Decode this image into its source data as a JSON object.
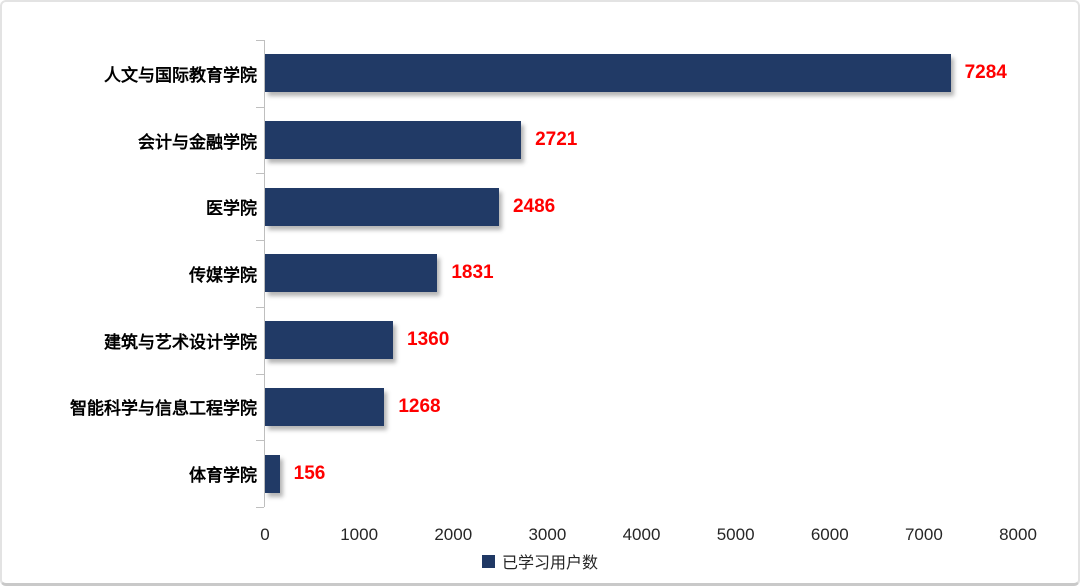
{
  "chart_data": {
    "type": "bar",
    "orientation": "horizontal",
    "categories": [
      "人文与国际教育学院",
      "会计与金融学院",
      "医学院",
      "传媒学院",
      "建筑与艺术设计学院",
      "智能科学与信息工程学院",
      "体育学院"
    ],
    "values": [
      7284,
      2721,
      2486,
      1831,
      1360,
      1268,
      156
    ],
    "value_labels": [
      "7284",
      "2721",
      "2486",
      "1831",
      "1360",
      "1268",
      "156"
    ],
    "title": "",
    "xlabel": "",
    "ylabel": "",
    "xlim": [
      0,
      8000
    ],
    "xticks": [
      0,
      1000,
      2000,
      3000,
      4000,
      5000,
      6000,
      7000,
      8000
    ],
    "grid": false,
    "legend_position": "bottom-center",
    "legend": "已学习用户数",
    "bar_color": "#213a66",
    "legend_swatch_color": "#1f3864",
    "value_label_color": "#ff0000",
    "axis_color": "#bfbfbf"
  }
}
